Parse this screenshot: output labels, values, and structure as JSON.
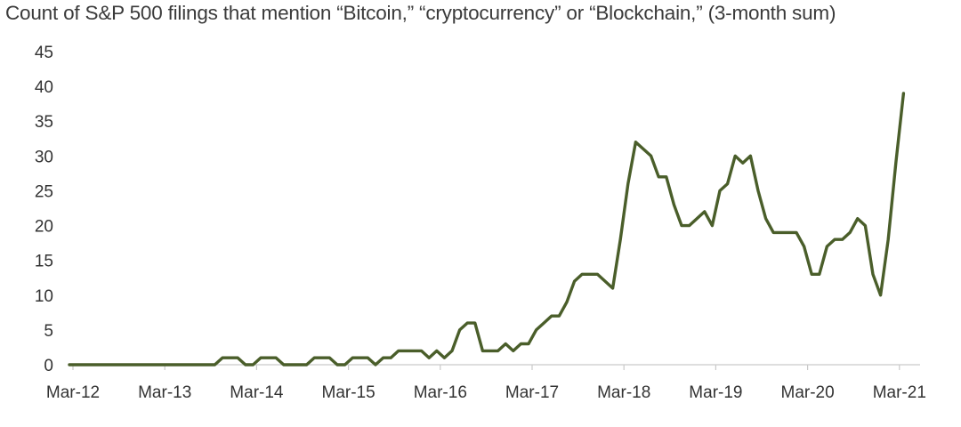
{
  "chart_data": {
    "type": "line",
    "title": "Count of S&P 500 filings that mention “Bitcoin,” “cryptocurrency” or “Blockchain,” (3-month sum)",
    "xlabel": "",
    "ylabel": "",
    "ylim": [
      0,
      45
    ],
    "yticks": [
      "0",
      "5",
      "10",
      "15",
      "20",
      "25",
      "30",
      "35",
      "40",
      "45"
    ],
    "xticks": [
      "Mar-12",
      "Mar-13",
      "Mar-14",
      "Mar-15",
      "Mar-16",
      "Mar-17",
      "Mar-18",
      "Mar-19",
      "Mar-20",
      "Mar-21"
    ],
    "grid": false,
    "legend": "none",
    "line_color": "#4a5e2a",
    "series": [
      {
        "values": [
          0,
          0,
          0,
          0,
          0,
          0,
          0,
          0,
          0,
          0,
          0,
          0,
          0,
          0,
          0,
          0,
          0,
          0,
          0,
          0,
          1,
          1,
          1,
          0,
          0,
          1,
          1,
          1,
          0,
          0,
          0,
          0,
          1,
          1,
          1,
          0,
          0,
          1,
          1,
          1,
          0,
          1,
          1,
          2,
          2,
          2,
          2,
          1,
          2,
          1,
          2,
          5,
          6,
          6,
          2,
          2,
          2,
          3,
          2,
          3,
          3,
          5,
          6,
          7,
          7,
          9,
          12,
          13,
          13,
          13,
          12,
          11,
          18,
          26,
          32,
          31,
          30,
          27,
          27,
          23,
          20,
          20,
          21,
          22,
          20,
          25,
          26,
          30,
          29,
          30,
          25,
          21,
          19,
          19,
          19,
          19,
          17,
          13,
          13,
          17,
          18,
          18,
          19,
          21,
          20,
          13,
          10,
          18,
          29,
          39
        ]
      }
    ]
  }
}
